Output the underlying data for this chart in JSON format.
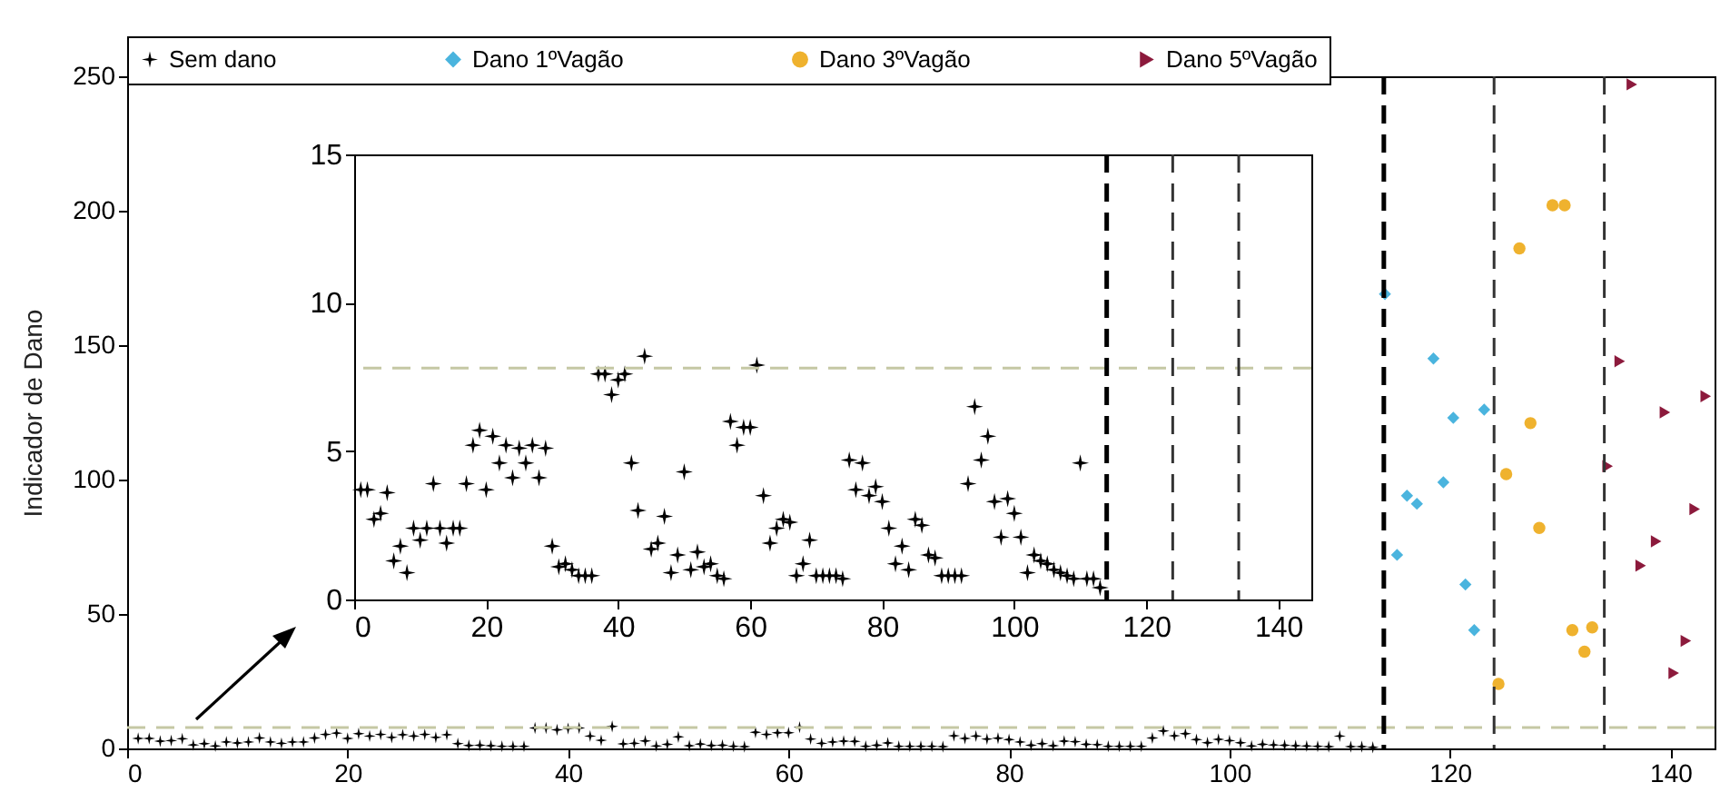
{
  "chart_data": [
    {
      "type": "scatter",
      "ylabel": "Indicador de Dano",
      "xlim": [
        0,
        144
      ],
      "ylim": [
        0,
        250
      ],
      "xticks": [
        0,
        20,
        40,
        60,
        80,
        100,
        120,
        140
      ],
      "yticks": [
        0,
        50,
        100,
        150,
        200,
        250
      ],
      "legend": "top",
      "series": [
        {
          "name": "Sem dano",
          "color": "#000000",
          "marker": "star",
          "x": [
            1,
            2,
            3,
            4,
            5,
            6,
            7,
            8,
            9,
            10,
            11,
            12,
            13,
            14,
            15,
            16,
            17,
            18,
            19,
            20,
            21,
            22,
            23,
            24,
            25,
            26,
            27,
            28,
            29,
            30,
            31,
            32,
            33,
            34,
            35,
            36,
            37,
            38,
            39,
            40,
            41,
            42,
            43,
            44,
            45,
            46,
            47,
            48,
            49,
            50,
            51,
            52,
            53,
            54,
            55,
            56,
            57,
            58,
            59,
            60,
            61,
            62,
            63,
            64,
            65,
            66,
            67,
            68,
            69,
            70,
            71,
            72,
            73,
            74,
            75,
            76,
            77,
            78,
            79,
            80,
            81,
            82,
            83,
            84,
            85,
            86,
            87,
            88,
            89,
            90,
            91,
            92,
            93,
            94,
            95,
            96,
            97,
            98,
            99,
            100,
            101,
            102,
            103,
            104,
            105,
            106,
            107,
            108,
            109,
            110,
            111,
            112,
            113
          ],
          "values": [
            3.7,
            3.7,
            2.7,
            2.9,
            3.6,
            1.3,
            1.8,
            0.9,
            2.4,
            2.0,
            2.4,
            3.9,
            2.4,
            1.9,
            2.4,
            2.4,
            3.9,
            5.2,
            5.7,
            3.7,
            5.5,
            4.6,
            5.2,
            4.1,
            5.1,
            4.6,
            5.2,
            4.1,
            5.1,
            1.8,
            1.1,
            1.2,
            1.0,
            0.8,
            0.8,
            0.8,
            7.6,
            7.6,
            6.9,
            7.4,
            7.6,
            4.6,
            3.0,
            8.2,
            1.7,
            1.9,
            2.8,
            0.9,
            1.5,
            4.3,
            1.0,
            1.6,
            1.1,
            1.2,
            0.8,
            0.7,
            6.0,
            5.2,
            5.8,
            5.8,
            7.9,
            3.5,
            1.9,
            2.4,
            2.7,
            2.6,
            0.8,
            1.2,
            2.0,
            0.8,
            0.8,
            0.8,
            0.8,
            0.7,
            4.7,
            3.7,
            4.6,
            3.5,
            3.8,
            3.3,
            2.4,
            1.2,
            1.8,
            1.0,
            2.7,
            2.5,
            1.5,
            1.4,
            0.8,
            0.8,
            0.8,
            0.8,
            3.9,
            6.5,
            4.7,
            5.5,
            3.3,
            2.1,
            3.4,
            2.9,
            2.1,
            0.9,
            1.5,
            1.3,
            1.2,
            1.0,
            0.9,
            0.8,
            0.7,
            4.6,
            0.7,
            0.7,
            0.4
          ]
        },
        {
          "name": "Dano 1ºVagão",
          "color": "#4ab4de",
          "marker": "diamond",
          "x": [
            114.1,
            118.5,
            120.3,
            123.1,
            119.4,
            116.1,
            117,
            115.2,
            121.4,
            122.2
          ],
          "values": [
            169,
            145,
            123,
            126,
            99,
            94,
            91,
            72,
            61,
            44
          ]
        },
        {
          "name": "Dano 3ºVagão",
          "color": "#efb22e",
          "marker": "circle",
          "x": [
            129.3,
            130.4,
            126.3,
            127.3,
            125.1,
            128.1,
            131.1,
            132.9,
            132.2,
            124.4
          ],
          "values": [
            202,
            202,
            186,
            121,
            102,
            82,
            44,
            45,
            36,
            24
          ]
        },
        {
          "name": "Dano 5ºVagão",
          "color": "#8c1a3c",
          "marker": "triangle",
          "x": [
            136.5,
            135.4,
            139.5,
            143.2,
            134.3,
            142.2,
            138.7,
            137.3,
            141.4,
            140.3
          ],
          "values": [
            247,
            144,
            125,
            131,
            105,
            89,
            77,
            68,
            40,
            28
          ]
        }
      ],
      "ref_lines": [
        {
          "axis": "y",
          "value": 7.8,
          "color": "#c5c8a4",
          "line_style": "dashed"
        },
        {
          "axis": "x",
          "value": 114,
          "color": "#000000",
          "line_style": "dashed"
        },
        {
          "axis": "x",
          "value": 124,
          "color": "#333333",
          "line_style": "dashed"
        },
        {
          "axis": "x",
          "value": 134,
          "color": "#333333",
          "line_style": "dashed"
        }
      ]
    },
    {
      "type": "scatter",
      "xlim": [
        0,
        145
      ],
      "ylim": [
        0,
        15
      ],
      "xticks": [
        0,
        20,
        40,
        60,
        80,
        100,
        120,
        140
      ],
      "yticks": [
        0,
        5,
        10,
        15
      ],
      "series": [
        {
          "color": "#000000",
          "marker": "star",
          "x": [
            1,
            2,
            3,
            4,
            5,
            6,
            7,
            8,
            9,
            10,
            11,
            12,
            13,
            14,
            15,
            16,
            17,
            18,
            19,
            20,
            21,
            22,
            23,
            24,
            25,
            26,
            27,
            28,
            29,
            30,
            31,
            32,
            33,
            34,
            35,
            36,
            37,
            38,
            39,
            40,
            41,
            42,
            43,
            44,
            45,
            46,
            47,
            48,
            49,
            50,
            51,
            52,
            53,
            54,
            55,
            56,
            57,
            58,
            59,
            60,
            61,
            62,
            63,
            64,
            65,
            66,
            67,
            68,
            69,
            70,
            71,
            72,
            73,
            74,
            75,
            76,
            77,
            78,
            79,
            80,
            81,
            82,
            83,
            84,
            85,
            86,
            87,
            88,
            89,
            90,
            91,
            92,
            93,
            94,
            95,
            96,
            97,
            98,
            99,
            100,
            101,
            102,
            103,
            104,
            105,
            106,
            107,
            108,
            109,
            110,
            111,
            112,
            113
          ],
          "values": [
            3.7,
            3.7,
            2.7,
            2.9,
            3.6,
            1.3,
            1.8,
            0.9,
            2.4,
            2.0,
            2.4,
            3.9,
            2.4,
            1.9,
            2.4,
            2.4,
            3.9,
            5.2,
            5.7,
            3.7,
            5.5,
            4.6,
            5.2,
            4.1,
            5.1,
            4.6,
            5.2,
            4.1,
            5.1,
            1.8,
            1.1,
            1.2,
            1.0,
            0.8,
            0.8,
            0.8,
            7.6,
            7.6,
            6.9,
            7.4,
            7.6,
            4.6,
            3.0,
            8.2,
            1.7,
            1.9,
            2.8,
            0.9,
            1.5,
            4.3,
            1.0,
            1.6,
            1.1,
            1.2,
            0.8,
            0.7,
            6.0,
            5.2,
            5.8,
            5.8,
            7.9,
            3.5,
            1.9,
            2.4,
            2.7,
            2.6,
            0.8,
            1.2,
            2.0,
            0.8,
            0.8,
            0.8,
            0.8,
            0.7,
            4.7,
            3.7,
            4.6,
            3.5,
            3.8,
            3.3,
            2.4,
            1.2,
            1.8,
            1.0,
            2.7,
            2.5,
            1.5,
            1.4,
            0.8,
            0.8,
            0.8,
            0.8,
            3.9,
            6.5,
            4.7,
            5.5,
            3.3,
            2.1,
            3.4,
            2.9,
            2.1,
            0.9,
            1.5,
            1.3,
            1.2,
            1.0,
            0.9,
            0.8,
            0.7,
            4.6,
            0.7,
            0.7,
            0.4
          ]
        }
      ],
      "ref_lines": [
        {
          "axis": "y",
          "value": 7.8,
          "color": "#c5c8a4",
          "line_style": "dashed"
        },
        {
          "axis": "x",
          "value": 114,
          "color": "#000000",
          "line_style": "dashed"
        },
        {
          "axis": "x",
          "value": 124,
          "color": "#333333",
          "line_style": "dashed"
        },
        {
          "axis": "x",
          "value": 134,
          "color": "#333333",
          "line_style": "dashed"
        }
      ]
    }
  ]
}
